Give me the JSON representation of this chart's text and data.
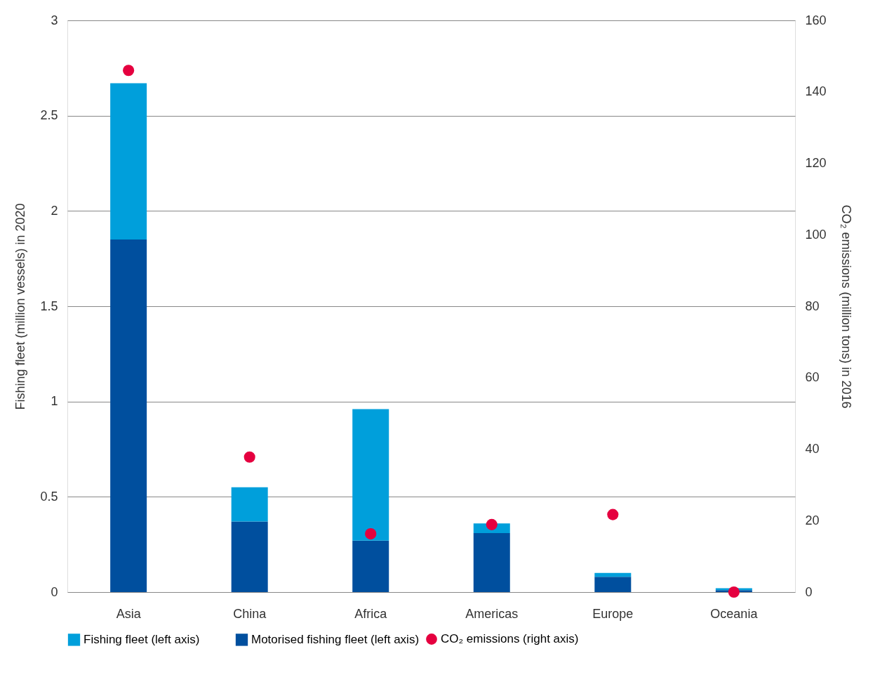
{
  "chart_data": {
    "type": "bar",
    "stacked": true,
    "categories": [
      "Asia",
      "China",
      "Africa",
      "Americas",
      "Europe",
      "Oceania"
    ],
    "ylabel": "Fishing fleet (million vessels) in 2020",
    "y2label": "CO₂ emissions (million tons) in 2016",
    "ylim": [
      0,
      3
    ],
    "yticks": [
      0,
      0.5,
      1,
      1.5,
      2,
      2.5,
      3
    ],
    "y2lim": [
      0,
      160
    ],
    "y2ticks": [
      0,
      20,
      40,
      60,
      80,
      100,
      120,
      140,
      160
    ],
    "grid": "y",
    "legend": "bottom",
    "series": [
      {
        "name": "Motorised fishing fleet (left axis)",
        "color": "#004f9e",
        "values": [
          1.85,
          0.37,
          0.27,
          0.31,
          0.08,
          0.01
        ]
      },
      {
        "name": "Fishing fleet (left axis)",
        "color": "#009fdb",
        "values": [
          0.82,
          0.18,
          0.69,
          0.05,
          0.02,
          0.01
        ]
      },
      {
        "name": "CO₂ emissions (right axis)",
        "type": "scatter",
        "axis": "y2",
        "marker": "circle",
        "color": "#e5003f",
        "values": [
          146,
          37.8,
          16.3,
          18.9,
          21.7,
          0
        ]
      }
    ]
  }
}
